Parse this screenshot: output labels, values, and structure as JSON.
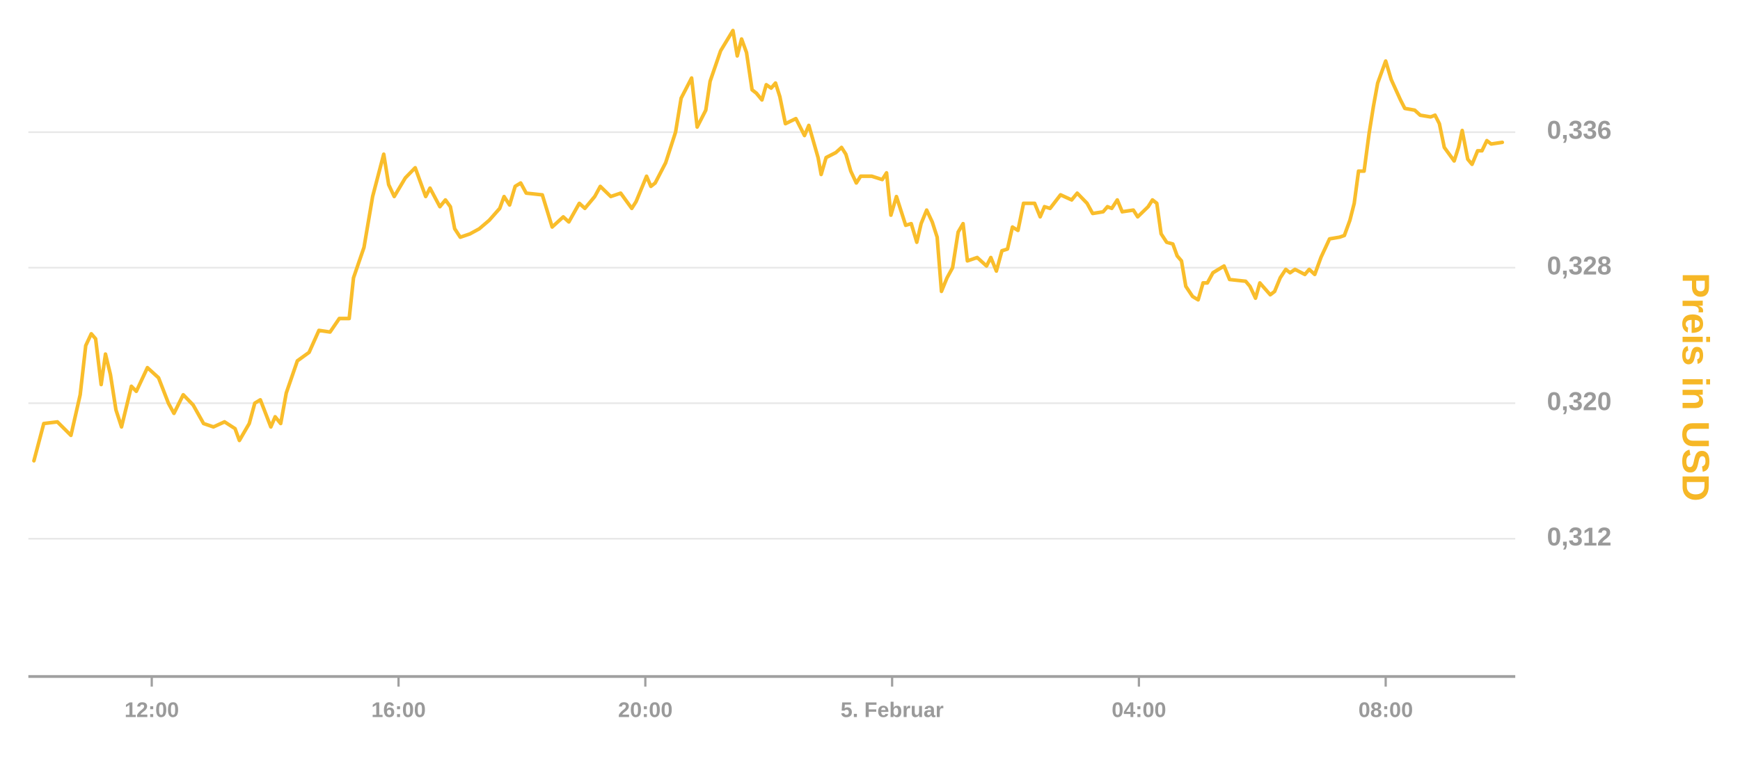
{
  "chart_data": {
    "type": "line",
    "y_label": "Preis in USD",
    "color": "#f9bd2b",
    "label_color": "#f6b726",
    "grid": true,
    "xlim": [
      10,
      34.1
    ],
    "ylim": [
      0.304,
      0.344
    ],
    "xticks": [
      {
        "value": 12,
        "label": "12:00"
      },
      {
        "value": 16,
        "label": "16:00"
      },
      {
        "value": 20,
        "label": "20:00"
      },
      {
        "value": 24,
        "label": "5. Februar"
      },
      {
        "value": 28,
        "label": "04:00"
      },
      {
        "value": 32,
        "label": "08:00"
      }
    ],
    "yticks": [
      {
        "value": 0.312,
        "label": "0,312"
      },
      {
        "value": 0.32,
        "label": "0,320"
      },
      {
        "value": 0.328,
        "label": "0,328"
      },
      {
        "value": 0.336,
        "label": "0,336"
      }
    ],
    "x": [
      10.09,
      10.25,
      10.47,
      10.69,
      10.84,
      10.93,
      11.02,
      11.09,
      11.18,
      11.25,
      11.33,
      11.42,
      11.51,
      11.67,
      11.75,
      11.93,
      12.11,
      12.27,
      12.36,
      12.51,
      12.67,
      12.84,
      13.0,
      13.18,
      13.35,
      13.42,
      13.58,
      13.67,
      13.76,
      13.93,
      14.0,
      14.09,
      14.18,
      14.36,
      14.55,
      14.71,
      14.89,
      15.04,
      15.2,
      15.27,
      15.44,
      15.58,
      15.76,
      15.84,
      15.93,
      16.11,
      16.27,
      16.44,
      16.51,
      16.67,
      16.76,
      16.84,
      16.91,
      17.0,
      17.16,
      17.31,
      17.47,
      17.64,
      17.71,
      17.8,
      17.89,
      17.98,
      18.07,
      18.33,
      18.49,
      18.67,
      18.76,
      18.93,
      19.02,
      19.18,
      19.27,
      19.44,
      19.6,
      19.78,
      19.85,
      20.02,
      20.09,
      20.16,
      20.33,
      20.49,
      20.58,
      20.75,
      20.84,
      20.98,
      21.05,
      21.22,
      21.42,
      21.49,
      21.56,
      21.64,
      21.73,
      21.8,
      21.89,
      21.96,
      22.04,
      22.11,
      22.18,
      22.27,
      22.44,
      22.58,
      22.65,
      22.8,
      22.85,
      22.93,
      23.09,
      23.18,
      23.25,
      23.33,
      23.42,
      23.49,
      23.67,
      23.84,
      23.91,
      23.98,
      24.07,
      24.22,
      24.31,
      24.4,
      24.47,
      24.56,
      24.65,
      24.73,
      24.8,
      24.89,
      24.98,
      25.07,
      25.15,
      25.22,
      25.38,
      25.53,
      25.6,
      25.69,
      25.78,
      25.87,
      25.95,
      26.04,
      26.13,
      26.31,
      26.4,
      26.47,
      26.56,
      26.73,
      26.91,
      27.0,
      27.16,
      27.25,
      27.42,
      27.49,
      27.56,
      27.65,
      27.73,
      27.91,
      27.98,
      28.15,
      28.22,
      28.29,
      28.36,
      28.45,
      28.55,
      28.62,
      28.69,
      28.76,
      28.87,
      28.96,
      29.04,
      29.11,
      29.2,
      29.38,
      29.47,
      29.73,
      29.8,
      29.89,
      29.96,
      30.13,
      30.2,
      30.29,
      30.38,
      30.45,
      30.53,
      30.69,
      30.76,
      30.85,
      30.95,
      31.09,
      31.25,
      31.33,
      31.42,
      31.49,
      31.56,
      31.65,
      31.73,
      31.8,
      31.87,
      32.0,
      32.09,
      32.24,
      32.31,
      32.47,
      32.56,
      32.73,
      32.8,
      32.87,
      32.95,
      33.11,
      33.18,
      33.24,
      33.33,
      33.4,
      33.49,
      33.56,
      33.64,
      33.71,
      33.89
    ],
    "values": [
      0.3166,
      0.3188,
      0.3189,
      0.3181,
      0.3205,
      0.3234,
      0.3241,
      0.3238,
      0.3211,
      0.3229,
      0.3217,
      0.3196,
      0.3186,
      0.321,
      0.3207,
      0.3221,
      0.3215,
      0.32,
      0.3194,
      0.3205,
      0.3199,
      0.3188,
      0.3186,
      0.3189,
      0.3185,
      0.3178,
      0.3188,
      0.32,
      0.3202,
      0.3186,
      0.3192,
      0.3188,
      0.3206,
      0.3225,
      0.323,
      0.3243,
      0.3242,
      0.325,
      0.325,
      0.3274,
      0.3292,
      0.3322,
      0.3347,
      0.3329,
      0.3322,
      0.3333,
      0.3339,
      0.3322,
      0.3327,
      0.3316,
      0.332,
      0.3316,
      0.3303,
      0.3298,
      0.33,
      0.3303,
      0.3308,
      0.3315,
      0.3322,
      0.3317,
      0.3328,
      0.333,
      0.3324,
      0.3323,
      0.3304,
      0.331,
      0.3307,
      0.3318,
      0.3315,
      0.3322,
      0.3328,
      0.3322,
      0.3324,
      0.3315,
      0.3319,
      0.3334,
      0.3328,
      0.333,
      0.3342,
      0.336,
      0.338,
      0.3392,
      0.3363,
      0.3373,
      0.339,
      0.3408,
      0.342,
      0.3405,
      0.3415,
      0.3407,
      0.3385,
      0.3383,
      0.3379,
      0.3388,
      0.3386,
      0.3389,
      0.3381,
      0.3365,
      0.3368,
      0.3358,
      0.3364,
      0.3345,
      0.3335,
      0.3345,
      0.3348,
      0.3351,
      0.3347,
      0.3337,
      0.333,
      0.3334,
      0.3334,
      0.3332,
      0.3336,
      0.3311,
      0.3322,
      0.3305,
      0.3306,
      0.3295,
      0.3306,
      0.3314,
      0.3307,
      0.3298,
      0.3266,
      0.3274,
      0.328,
      0.3301,
      0.3306,
      0.3284,
      0.3286,
      0.3281,
      0.3286,
      0.3278,
      0.329,
      0.3291,
      0.3304,
      0.3302,
      0.3318,
      0.3318,
      0.331,
      0.3316,
      0.3315,
      0.3323,
      0.332,
      0.3324,
      0.3318,
      0.3312,
      0.3313,
      0.3316,
      0.3315,
      0.332,
      0.3313,
      0.3314,
      0.331,
      0.3316,
      0.332,
      0.3318,
      0.33,
      0.3295,
      0.3294,
      0.3287,
      0.3284,
      0.3269,
      0.3263,
      0.3261,
      0.3271,
      0.3271,
      0.3277,
      0.3281,
      0.3273,
      0.3272,
      0.3269,
      0.3262,
      0.3271,
      0.3264,
      0.3266,
      0.3274,
      0.3279,
      0.3277,
      0.3279,
      0.3276,
      0.3279,
      0.3276,
      0.3286,
      0.3297,
      0.3298,
      0.3299,
      0.3308,
      0.3318,
      0.3337,
      0.3337,
      0.3359,
      0.3375,
      0.3389,
      0.3402,
      0.3391,
      0.3379,
      0.3374,
      0.3373,
      0.337,
      0.3369,
      0.337,
      0.3365,
      0.3351,
      0.3343,
      0.3351,
      0.3361,
      0.3344,
      0.3341,
      0.3349,
      0.3349,
      0.3355,
      0.3353,
      0.3354
    ]
  }
}
